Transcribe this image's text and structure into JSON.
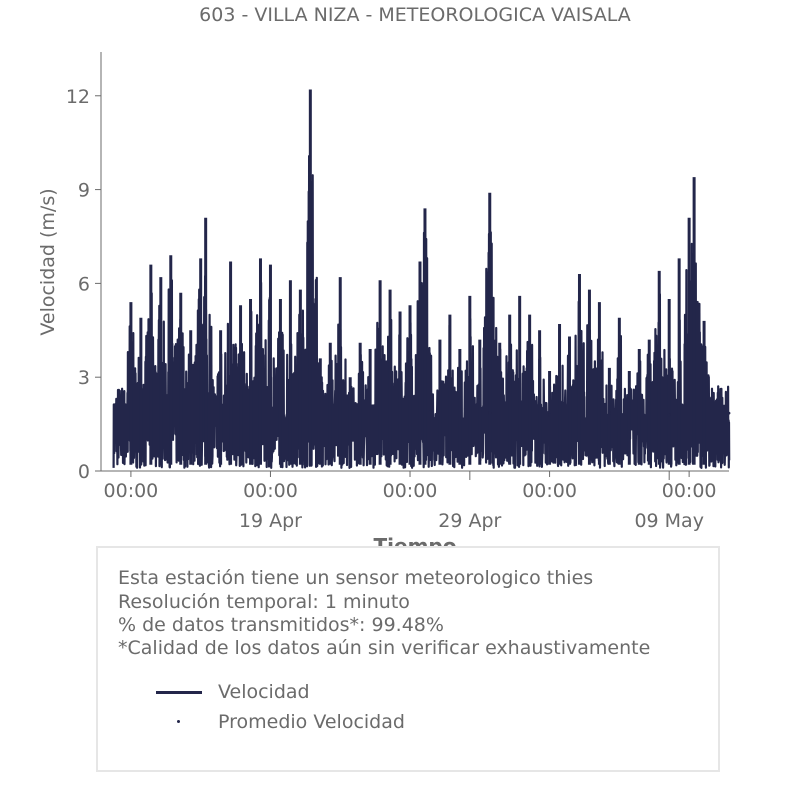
{
  "chart_data": {
    "type": "line",
    "title": "603 - VILLA NIZA - METEOROLOGICA VAISALA",
    "xlabel": "Tiempo",
    "ylabel": "Velocidad (m/s)",
    "ylim": [
      0,
      13.4
    ],
    "y_ticks": [
      0,
      3,
      6,
      9,
      12
    ],
    "x_range": [
      "2024-04-10 12:00",
      "2024-05-12 00:00"
    ],
    "x_ticks": [
      {
        "x": "2024-04-12 00:00",
        "label": "00:00",
        "sublabel": ""
      },
      {
        "x": "2024-04-19 00:00",
        "label": "00:00",
        "sublabel": "19 Apr"
      },
      {
        "x": "2024-04-26 00:00",
        "label": "00:00",
        "sublabel": ""
      },
      {
        "x": "2024-04-29 00:00",
        "label": "",
        "sublabel": "29 Apr"
      },
      {
        "x": "2024-05-03 00:00",
        "label": "00:00",
        "sublabel": ""
      },
      {
        "x": "2024-05-09 00:00",
        "label": "",
        "sublabel": "09 May"
      },
      {
        "x": "2024-05-10 00:00",
        "label": "00:00",
        "sublabel": ""
      }
    ],
    "series": [
      {
        "name": "Velocidad",
        "color": "#23264a",
        "style": "line",
        "peaks": [
          [
            "2024-04-12 00:00",
            5.4
          ],
          [
            "2024-04-12 12:00",
            4.9
          ],
          [
            "2024-04-13 00:00",
            6.6
          ],
          [
            "2024-04-13 12:00",
            6.2
          ],
          [
            "2024-04-14 00:00",
            6.9
          ],
          [
            "2024-04-14 12:00",
            5.7
          ],
          [
            "2024-04-15 00:00",
            4.5
          ],
          [
            "2024-04-15 12:00",
            6.8
          ],
          [
            "2024-04-15 18:00",
            8.1
          ],
          [
            "2024-04-16 12:00",
            4.5
          ],
          [
            "2024-04-17 00:00",
            6.7
          ],
          [
            "2024-04-17 12:00",
            5.3
          ],
          [
            "2024-04-18 00:00",
            5.5
          ],
          [
            "2024-04-18 12:00",
            6.8
          ],
          [
            "2024-04-19 00:00",
            6.6
          ],
          [
            "2024-04-19 12:00",
            5.5
          ],
          [
            "2024-04-20 00:00",
            6.1
          ],
          [
            "2024-04-20 12:00",
            5.8
          ],
          [
            "2024-04-21 00:00",
            12.2
          ],
          [
            "2024-04-21 12:00",
            3.6
          ],
          [
            "2024-04-22 00:00",
            4.1
          ],
          [
            "2024-04-22 12:00",
            6.2
          ],
          [
            "2024-04-23 00:00",
            3.0
          ],
          [
            "2024-04-23 12:00",
            4.1
          ],
          [
            "2024-04-24 00:00",
            3.9
          ],
          [
            "2024-04-24 12:00",
            6.1
          ],
          [
            "2024-04-25 00:00",
            5.8
          ],
          [
            "2024-04-25 12:00",
            5.1
          ],
          [
            "2024-04-26 00:00",
            5.3
          ],
          [
            "2024-04-26 12:00",
            6.7
          ],
          [
            "2024-04-26 18:00",
            8.4
          ],
          [
            "2024-04-27 12:00",
            4.2
          ],
          [
            "2024-04-28 00:00",
            5.0
          ],
          [
            "2024-04-28 12:00",
            3.9
          ],
          [
            "2024-04-29 00:00",
            5.6
          ],
          [
            "2024-04-29 12:00",
            4.2
          ],
          [
            "2024-04-30 00:00",
            8.9
          ],
          [
            "2024-04-30 12:00",
            4.1
          ],
          [
            "2024-05-01 00:00",
            5.0
          ],
          [
            "2024-05-01 12:00",
            5.6
          ],
          [
            "2024-05-02 00:00",
            5.0
          ],
          [
            "2024-05-02 12:00",
            4.5
          ],
          [
            "2024-05-03 00:00",
            3.2
          ],
          [
            "2024-05-03 12:00",
            4.7
          ],
          [
            "2024-05-04 00:00",
            4.3
          ],
          [
            "2024-05-04 12:00",
            6.3
          ],
          [
            "2024-05-05 00:00",
            5.8
          ],
          [
            "2024-05-05 12:00",
            5.4
          ],
          [
            "2024-05-06 00:00",
            3.3
          ],
          [
            "2024-05-06 12:00",
            4.9
          ],
          [
            "2024-05-07 00:00",
            3.2
          ],
          [
            "2024-05-07 12:00",
            3.9
          ],
          [
            "2024-05-08 00:00",
            4.2
          ],
          [
            "2024-05-08 12:00",
            6.4
          ],
          [
            "2024-05-09 00:00",
            5.5
          ],
          [
            "2024-05-09 12:00",
            6.8
          ],
          [
            "2024-05-10 00:00",
            8.1
          ],
          [
            "2024-05-10 06:00",
            9.4
          ],
          [
            "2024-05-10 18:00",
            4.8
          ]
        ],
        "typical_min": 0.1,
        "baseline": 2.2
      },
      {
        "name": "Promedio Velocidad",
        "color": "#23264a",
        "style": "dotted",
        "points": [
          [
            "2024-04-27 00:00",
            1.9
          ],
          [
            "2024-04-30 00:00",
            1.85
          ],
          [
            "2024-05-03 00:00",
            1.8
          ],
          [
            "2024-05-06 00:00",
            1.85
          ],
          [
            "2024-05-09 00:00",
            1.8
          ],
          [
            "2024-05-12 00:00",
            1.85
          ]
        ]
      }
    ],
    "legend": {
      "placement": "below-chart",
      "entries": [
        "Velocidad",
        "Promedio Velocidad"
      ]
    },
    "grid": false
  },
  "info": {
    "lines": [
      "Esta estación tiene un sensor meteorologico thies",
      "Resolución temporal: 1 minuto",
      "% de datos transmitidos*: 99.48%",
      "*Calidad de los datos aún sin verificar exhaustivamente"
    ]
  },
  "colors": {
    "series": "#23264a",
    "text": "#6b6b6b",
    "axis": "#6b6b6b",
    "box_border": "#e6e6e6"
  }
}
